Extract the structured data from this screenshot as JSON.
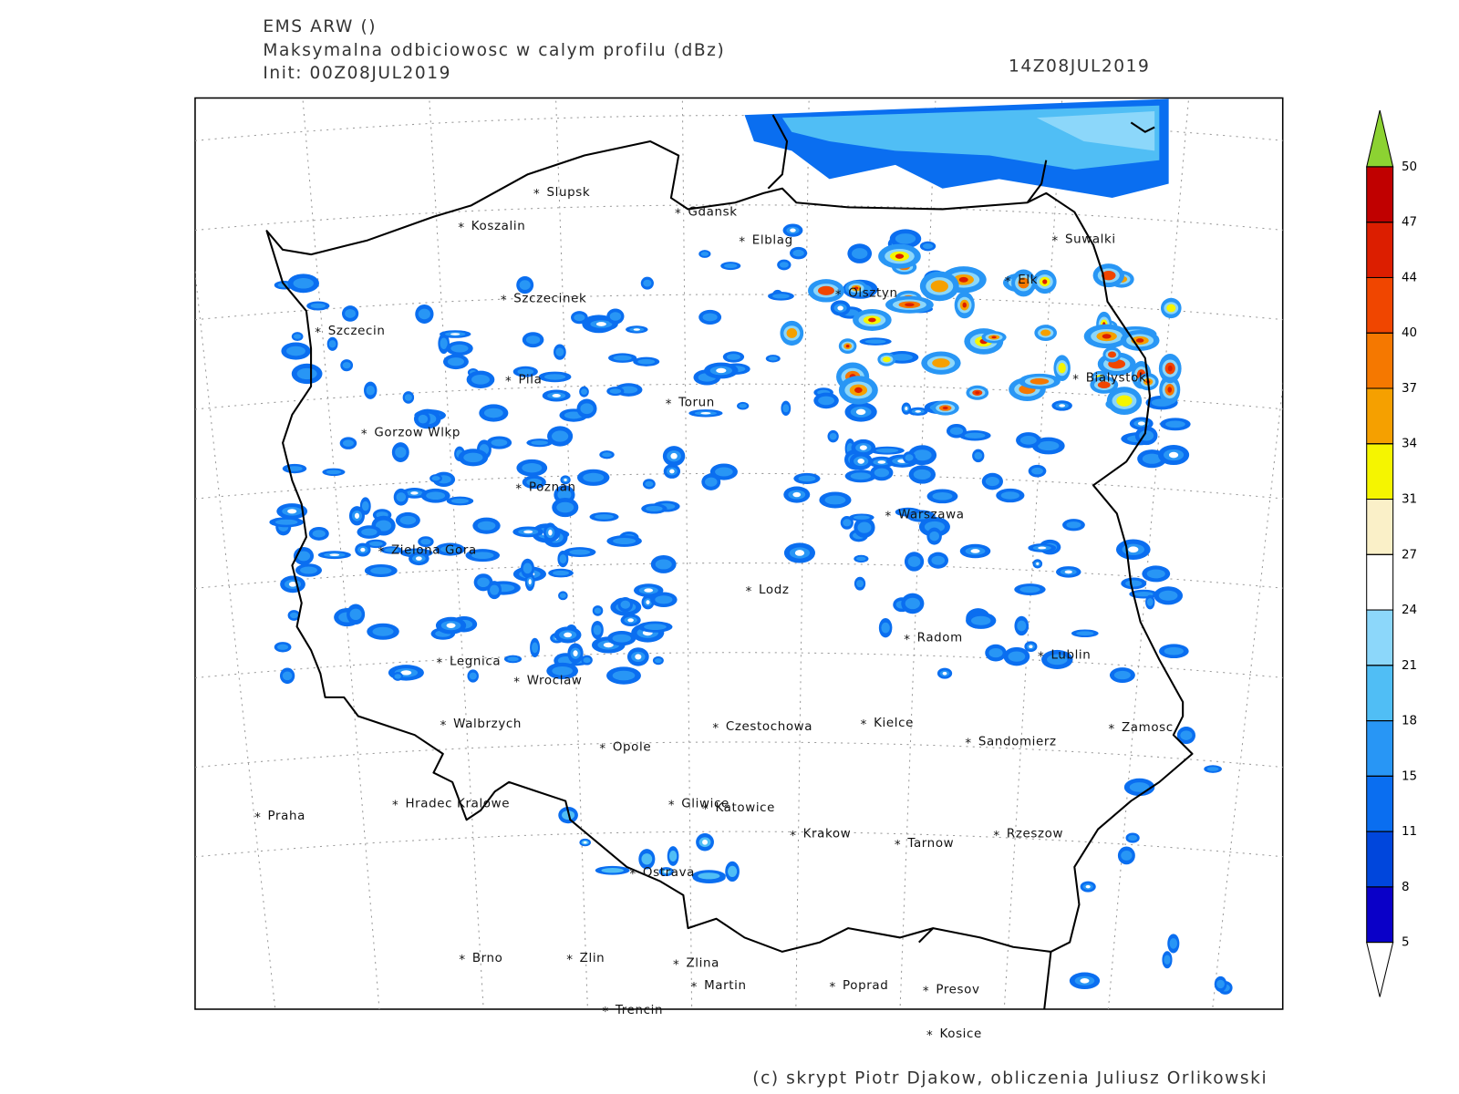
{
  "header": {
    "model": "EMS ARW ()",
    "field": "Maksymalna odbiciowosc w calym profilu (dBz)",
    "init": "Init: 00Z08JUL2019",
    "valid": "14Z08JUL2019"
  },
  "cities": [
    "Slupsk",
    "Koszalin",
    "Gdansk",
    "Elblag",
    "Suwalki",
    "Szczecinek",
    "Olsztyn",
    "Elk",
    "Szczecin",
    "Pila",
    "Torun",
    "Bialystok",
    "Gorzow Wlkp",
    "Poznan",
    "Warszawa",
    "Zielona Gora",
    "Lodz",
    "Radom",
    "Lublin",
    "Legnica",
    "Wroclaw",
    "Walbrzych",
    "Czestochowa",
    "Kielce",
    "Zamosc",
    "Opole",
    "Sandomierz",
    "Praha",
    "Hradec Kralowe",
    "Gliwice",
    "Katowice",
    "Krakow",
    "Tarnow",
    "Rzeszow",
    "Ostrava",
    "Brno",
    "Zlin",
    "Zlina",
    "Martin",
    "Poprad",
    "Presov",
    "Trencin",
    "Kosice"
  ],
  "colorbar": {
    "ticks": [
      5,
      8,
      11,
      15,
      18,
      21,
      24,
      27,
      31,
      34,
      37,
      40,
      44,
      47,
      50
    ],
    "colors": [
      "#0a00c8",
      "#0046dc",
      "#0a6ef0",
      "#2896f5",
      "#50bef5",
      "#8cd7fa",
      "#ffffff",
      "#faf0c8",
      "#f5f500",
      "#f5a000",
      "#f57800",
      "#f04600",
      "#dc1e00",
      "#c00000"
    ],
    "under_color": "#ffffff",
    "over_color": "#8cd232"
  },
  "footer": "(c) skrypt Piotr Djakow, obliczenia Juliusz Orlikowski"
}
